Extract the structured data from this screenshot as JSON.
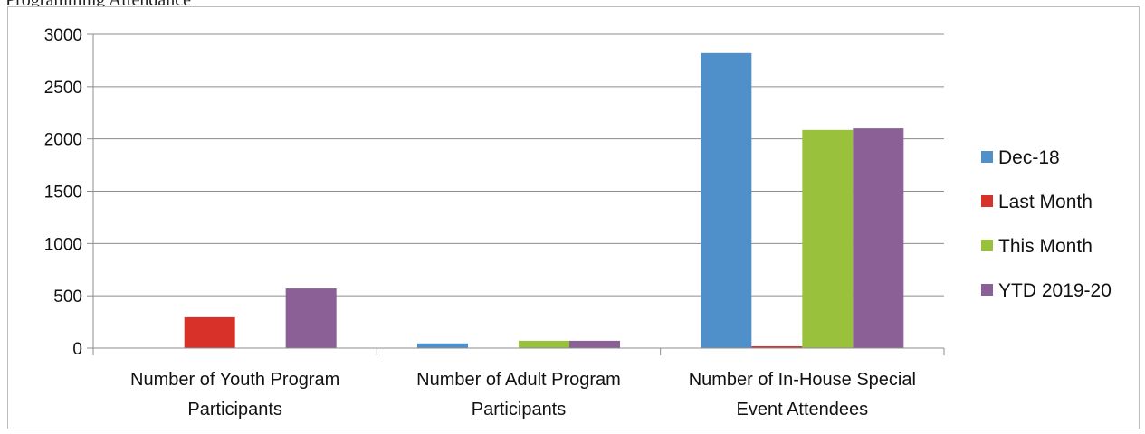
{
  "page_title": "Programming Attendance",
  "chart_data": {
    "type": "bar",
    "title": "",
    "categories": [
      [
        "Number of Youth Program",
        "Participants"
      ],
      [
        "Number of Adult Program",
        "Participants"
      ],
      [
        "Number of In-House Special",
        "Event Attendees"
      ]
    ],
    "series": [
      {
        "name": "Dec-18",
        "color": "#4f8fca",
        "values": [
          0,
          45,
          2820
        ]
      },
      {
        "name": "Last Month",
        "color": "#d8312a",
        "values": [
          295,
          0,
          15
        ]
      },
      {
        "name": "This Month",
        "color": "#99c13b",
        "values": [
          0,
          70,
          2085
        ]
      },
      {
        "name": "YTD 2019-20",
        "color": "#8a6096",
        "values": [
          570,
          70,
          2100
        ]
      }
    ],
    "ylim": [
      0,
      3000
    ],
    "yticks": [
      0,
      500,
      1000,
      1500,
      2000,
      2500,
      3000
    ],
    "grid": true,
    "legend_position": "right",
    "xlabel": "",
    "ylabel": ""
  }
}
